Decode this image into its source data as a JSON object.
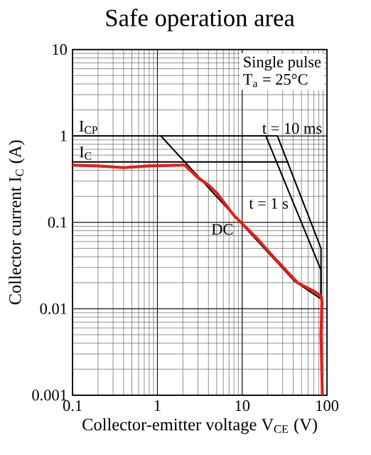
{
  "chart_data": {
    "type": "line",
    "title": "Safe operation area",
    "xlabel": "Collector-emitter voltage  V$_{CE}$  (V)",
    "ylabel": "Collector current  I$_{C}$  (A)",
    "log": "xy",
    "grid": true,
    "legend": false,
    "xlim": [
      0.1,
      100
    ],
    "ylim": [
      0.001,
      10
    ],
    "xticks": [
      0.1,
      1,
      10,
      100
    ],
    "yticks": [
      0.001,
      0.01,
      0.1,
      1,
      10
    ],
    "annotations": [
      "Single pulse",
      "T$_{a}$ = 25°C"
    ],
    "series": [
      {
        "name": "I$_{CP}$",
        "color": "#000000",
        "x": [
          0.1,
          26
        ],
        "values": [
          1,
          1
        ]
      },
      {
        "name": "I$_{C}$",
        "color": "#000000",
        "x": [
          0.1,
          35
        ],
        "values": [
          0.5,
          0.5
        ]
      },
      {
        "name": "t = 10 ms",
        "color": "#000000",
        "x": [
          26,
          85,
          85
        ],
        "values": [
          1,
          0.05,
          0.013
        ]
      },
      {
        "name": "t = 1 s",
        "color": "#000000",
        "x": [
          19,
          85,
          85
        ],
        "values": [
          1,
          0.028,
          0.013
        ]
      },
      {
        "name": "DC",
        "color": "#000000",
        "x": [
          1.1,
          41,
          85
        ],
        "values": [
          1,
          0.021,
          0.013
        ]
      },
      {
        "color": "#e0201b",
        "x": [
          0.1,
          0.2,
          0.4,
          0.8,
          2.1,
          3,
          4,
          5,
          8,
          15,
          25,
          45,
          70,
          85,
          87,
          85,
          88
        ],
        "values": [
          0.46,
          0.45,
          0.43,
          0.45,
          0.46,
          0.33,
          0.27,
          0.22,
          0.12,
          0.065,
          0.037,
          0.02,
          0.016,
          0.014,
          0.012,
          0.005,
          0.001
        ]
      }
    ]
  }
}
